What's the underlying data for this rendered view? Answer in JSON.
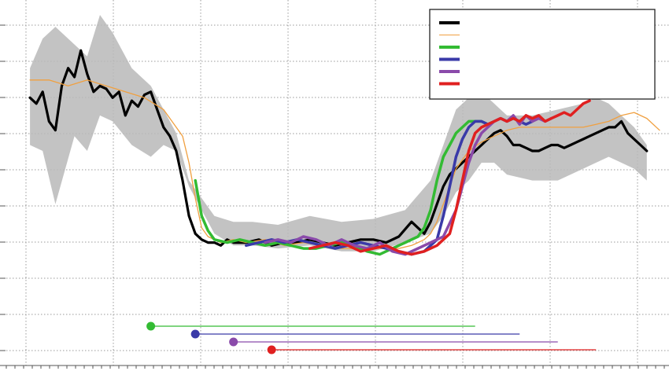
{
  "chart_data": {
    "type": "line",
    "title": "",
    "xlabel": "",
    "ylabel": "",
    "xlim": [
      0,
      100
    ],
    "ylim": [
      0,
      100
    ],
    "grid": true,
    "legend_position": "top-right",
    "colors": {
      "black": "#000000",
      "orange": "#f0a040",
      "green": "#33bb33",
      "blue": "#3a3aa8",
      "purple": "#8a4aaa",
      "red": "#e02020",
      "band": "#b8b8b8",
      "grid": "#9a9a9a"
    },
    "legend": [
      {
        "color": "black",
        "width": 4,
        "label": ""
      },
      {
        "color": "orange",
        "width": 1,
        "label": ""
      },
      {
        "color": "green",
        "width": 4,
        "label": ""
      },
      {
        "color": "blue",
        "width": 4,
        "label": ""
      },
      {
        "color": "purple",
        "width": 4,
        "label": ""
      },
      {
        "color": "red",
        "width": 4,
        "label": ""
      }
    ],
    "band": {
      "x": [
        1,
        3,
        5,
        8,
        10,
        12,
        14,
        17,
        20,
        22,
        24,
        26,
        30,
        33,
        36,
        40,
        45,
        50,
        55,
        60,
        64,
        66,
        68,
        70,
        72,
        74,
        76,
        80,
        84,
        88,
        90,
        92,
        94,
        96,
        98
      ],
      "upper": [
        78,
        88,
        92,
        86,
        82,
        96,
        90,
        78,
        72,
        64,
        56,
        40,
        28,
        26,
        26,
        25,
        28,
        26,
        27,
        30,
        40,
        52,
        64,
        68,
        70,
        66,
        62,
        62,
        64,
        66,
        68,
        66,
        62,
        58,
        52
      ],
      "lower": [
        52,
        50,
        32,
        55,
        50,
        62,
        60,
        52,
        48,
        52,
        50,
        38,
        22,
        18,
        18,
        17,
        18,
        16,
        16,
        19,
        22,
        28,
        36,
        40,
        46,
        46,
        42,
        40,
        40,
        44,
        46,
        48,
        46,
        44,
        40
      ]
    },
    "series": [
      {
        "color": "black",
        "width": 3.2,
        "x": [
          1,
          2,
          3,
          4,
          5,
          6,
          7,
          8,
          9,
          10,
          11,
          12,
          13,
          14,
          15,
          16,
          17,
          18,
          19,
          20,
          21,
          22,
          23,
          24,
          25,
          26,
          27,
          28,
          29,
          30,
          31,
          32,
          33,
          35,
          37,
          39,
          41,
          43,
          45,
          47,
          49,
          51,
          53,
          55,
          57,
          59,
          61,
          62,
          63,
          64,
          65,
          66,
          67,
          68,
          69,
          70,
          71,
          72,
          73,
          74,
          75,
          76,
          77,
          78,
          79,
          80,
          81,
          82,
          83,
          84,
          85,
          86,
          87,
          88,
          89,
          90,
          91,
          92,
          93,
          94,
          95,
          96,
          97,
          98
        ],
        "y": [
          68,
          66,
          70,
          60,
          57,
          72,
          78,
          75,
          84,
          76,
          70,
          72,
          71,
          68,
          70,
          62,
          67,
          65,
          69,
          70,
          64,
          58,
          55,
          50,
          40,
          28,
          22,
          20,
          19,
          19,
          18,
          20,
          19,
          19,
          20,
          18,
          19,
          19,
          20,
          19,
          18,
          19,
          20,
          20,
          19,
          21,
          26,
          24,
          22,
          26,
          32,
          38,
          42,
          44,
          46,
          48,
          50,
          52,
          54,
          56,
          57,
          55,
          52,
          52,
          51,
          50,
          50,
          51,
          52,
          52,
          51,
          52,
          53,
          54,
          55,
          56,
          57,
          58,
          58,
          60,
          56,
          54,
          52,
          50
        ]
      },
      {
        "color": "orange",
        "width": 1.3,
        "x": [
          1,
          4,
          7,
          10,
          13,
          16,
          19,
          22,
          24,
          25,
          26,
          27,
          28,
          29,
          31,
          33,
          35,
          38,
          41,
          44,
          47,
          50,
          53,
          56,
          59,
          61,
          62,
          63,
          64,
          65,
          66,
          67,
          68,
          70,
          72,
          74,
          76,
          78,
          80,
          82,
          84,
          86,
          88,
          90,
          92,
          94,
          96,
          98,
          100
        ],
        "y": [
          74,
          74,
          72,
          74,
          72,
          70,
          68,
          64,
          58,
          55,
          46,
          34,
          24,
          21,
          19,
          20,
          19,
          20,
          18,
          19,
          18,
          17,
          17,
          17,
          17,
          18,
          19,
          20,
          22,
          26,
          32,
          38,
          44,
          50,
          53,
          55,
          57,
          58,
          58,
          58,
          58,
          58,
          58,
          59,
          60,
          62,
          63,
          61,
          57
        ]
      },
      {
        "color": "green",
        "width": 3.5,
        "x": [
          27,
          28,
          29,
          30,
          32,
          34,
          36,
          38,
          40,
          42,
          44,
          46,
          48,
          50,
          52,
          54,
          56,
          58,
          60,
          62,
          63,
          64,
          65,
          66,
          67,
          68,
          69,
          70,
          71,
          72,
          73,
          74
        ],
        "y": [
          40,
          28,
          23,
          20,
          19,
          20,
          19,
          18,
          19,
          18,
          17,
          17,
          18,
          19,
          18,
          16,
          15,
          17,
          19,
          21,
          24,
          30,
          40,
          48,
          52,
          56,
          58,
          60,
          60,
          60,
          59,
          60
        ]
      },
      {
        "color": "blue",
        "width": 3.5,
        "x": [
          35,
          37,
          39,
          41,
          43,
          45,
          47,
          49,
          51,
          53,
          55,
          57,
          59,
          61,
          63,
          65,
          66,
          67,
          68,
          69,
          70,
          71,
          72,
          73,
          74,
          75,
          76,
          77,
          78,
          79,
          80
        ],
        "y": [
          18,
          19,
          20,
          19,
          20,
          19,
          18,
          17,
          18,
          19,
          18,
          17,
          16,
          15,
          16,
          20,
          28,
          38,
          48,
          54,
          58,
          60,
          60,
          59,
          60,
          61,
          60,
          61,
          60,
          59,
          60
        ]
      },
      {
        "color": "purple",
        "width": 3.5,
        "x": [
          38,
          40,
          42,
          44,
          46,
          48,
          50,
          52,
          54,
          56,
          58,
          60,
          62,
          64,
          66,
          68,
          69,
          70,
          71,
          72,
          73,
          74,
          75,
          76,
          77,
          78,
          79,
          80,
          81,
          82,
          83
        ],
        "y": [
          19,
          20,
          19,
          21,
          20,
          18,
          20,
          18,
          17,
          19,
          16,
          15,
          17,
          19,
          21,
          30,
          38,
          46,
          52,
          56,
          58,
          60,
          61,
          60,
          62,
          59,
          62,
          60,
          61,
          60,
          61
        ]
      },
      {
        "color": "red",
        "width": 3.5,
        "x": [
          45,
          47,
          49,
          51,
          53,
          55,
          57,
          59,
          61,
          63,
          65,
          67,
          68,
          69,
          70,
          71,
          72,
          73,
          74,
          75,
          76,
          77,
          78,
          79,
          80,
          81,
          82,
          83,
          84,
          85,
          86,
          87,
          88,
          89
        ],
        "y": [
          17,
          18,
          19,
          18,
          16,
          17,
          18,
          16,
          15,
          16,
          18,
          22,
          30,
          40,
          50,
          56,
          58,
          59,
          60,
          61,
          60,
          61,
          60,
          62,
          61,
          62,
          60,
          61,
          62,
          63,
          62,
          64,
          66,
          67
        ]
      }
    ],
    "intervals": [
      {
        "color": "green",
        "start": 20,
        "end": 71
      },
      {
        "color": "blue",
        "start": 27,
        "end": 78
      },
      {
        "color": "purple",
        "start": 33,
        "end": 84
      },
      {
        "color": "red",
        "start": 39,
        "end": 90
      }
    ]
  }
}
